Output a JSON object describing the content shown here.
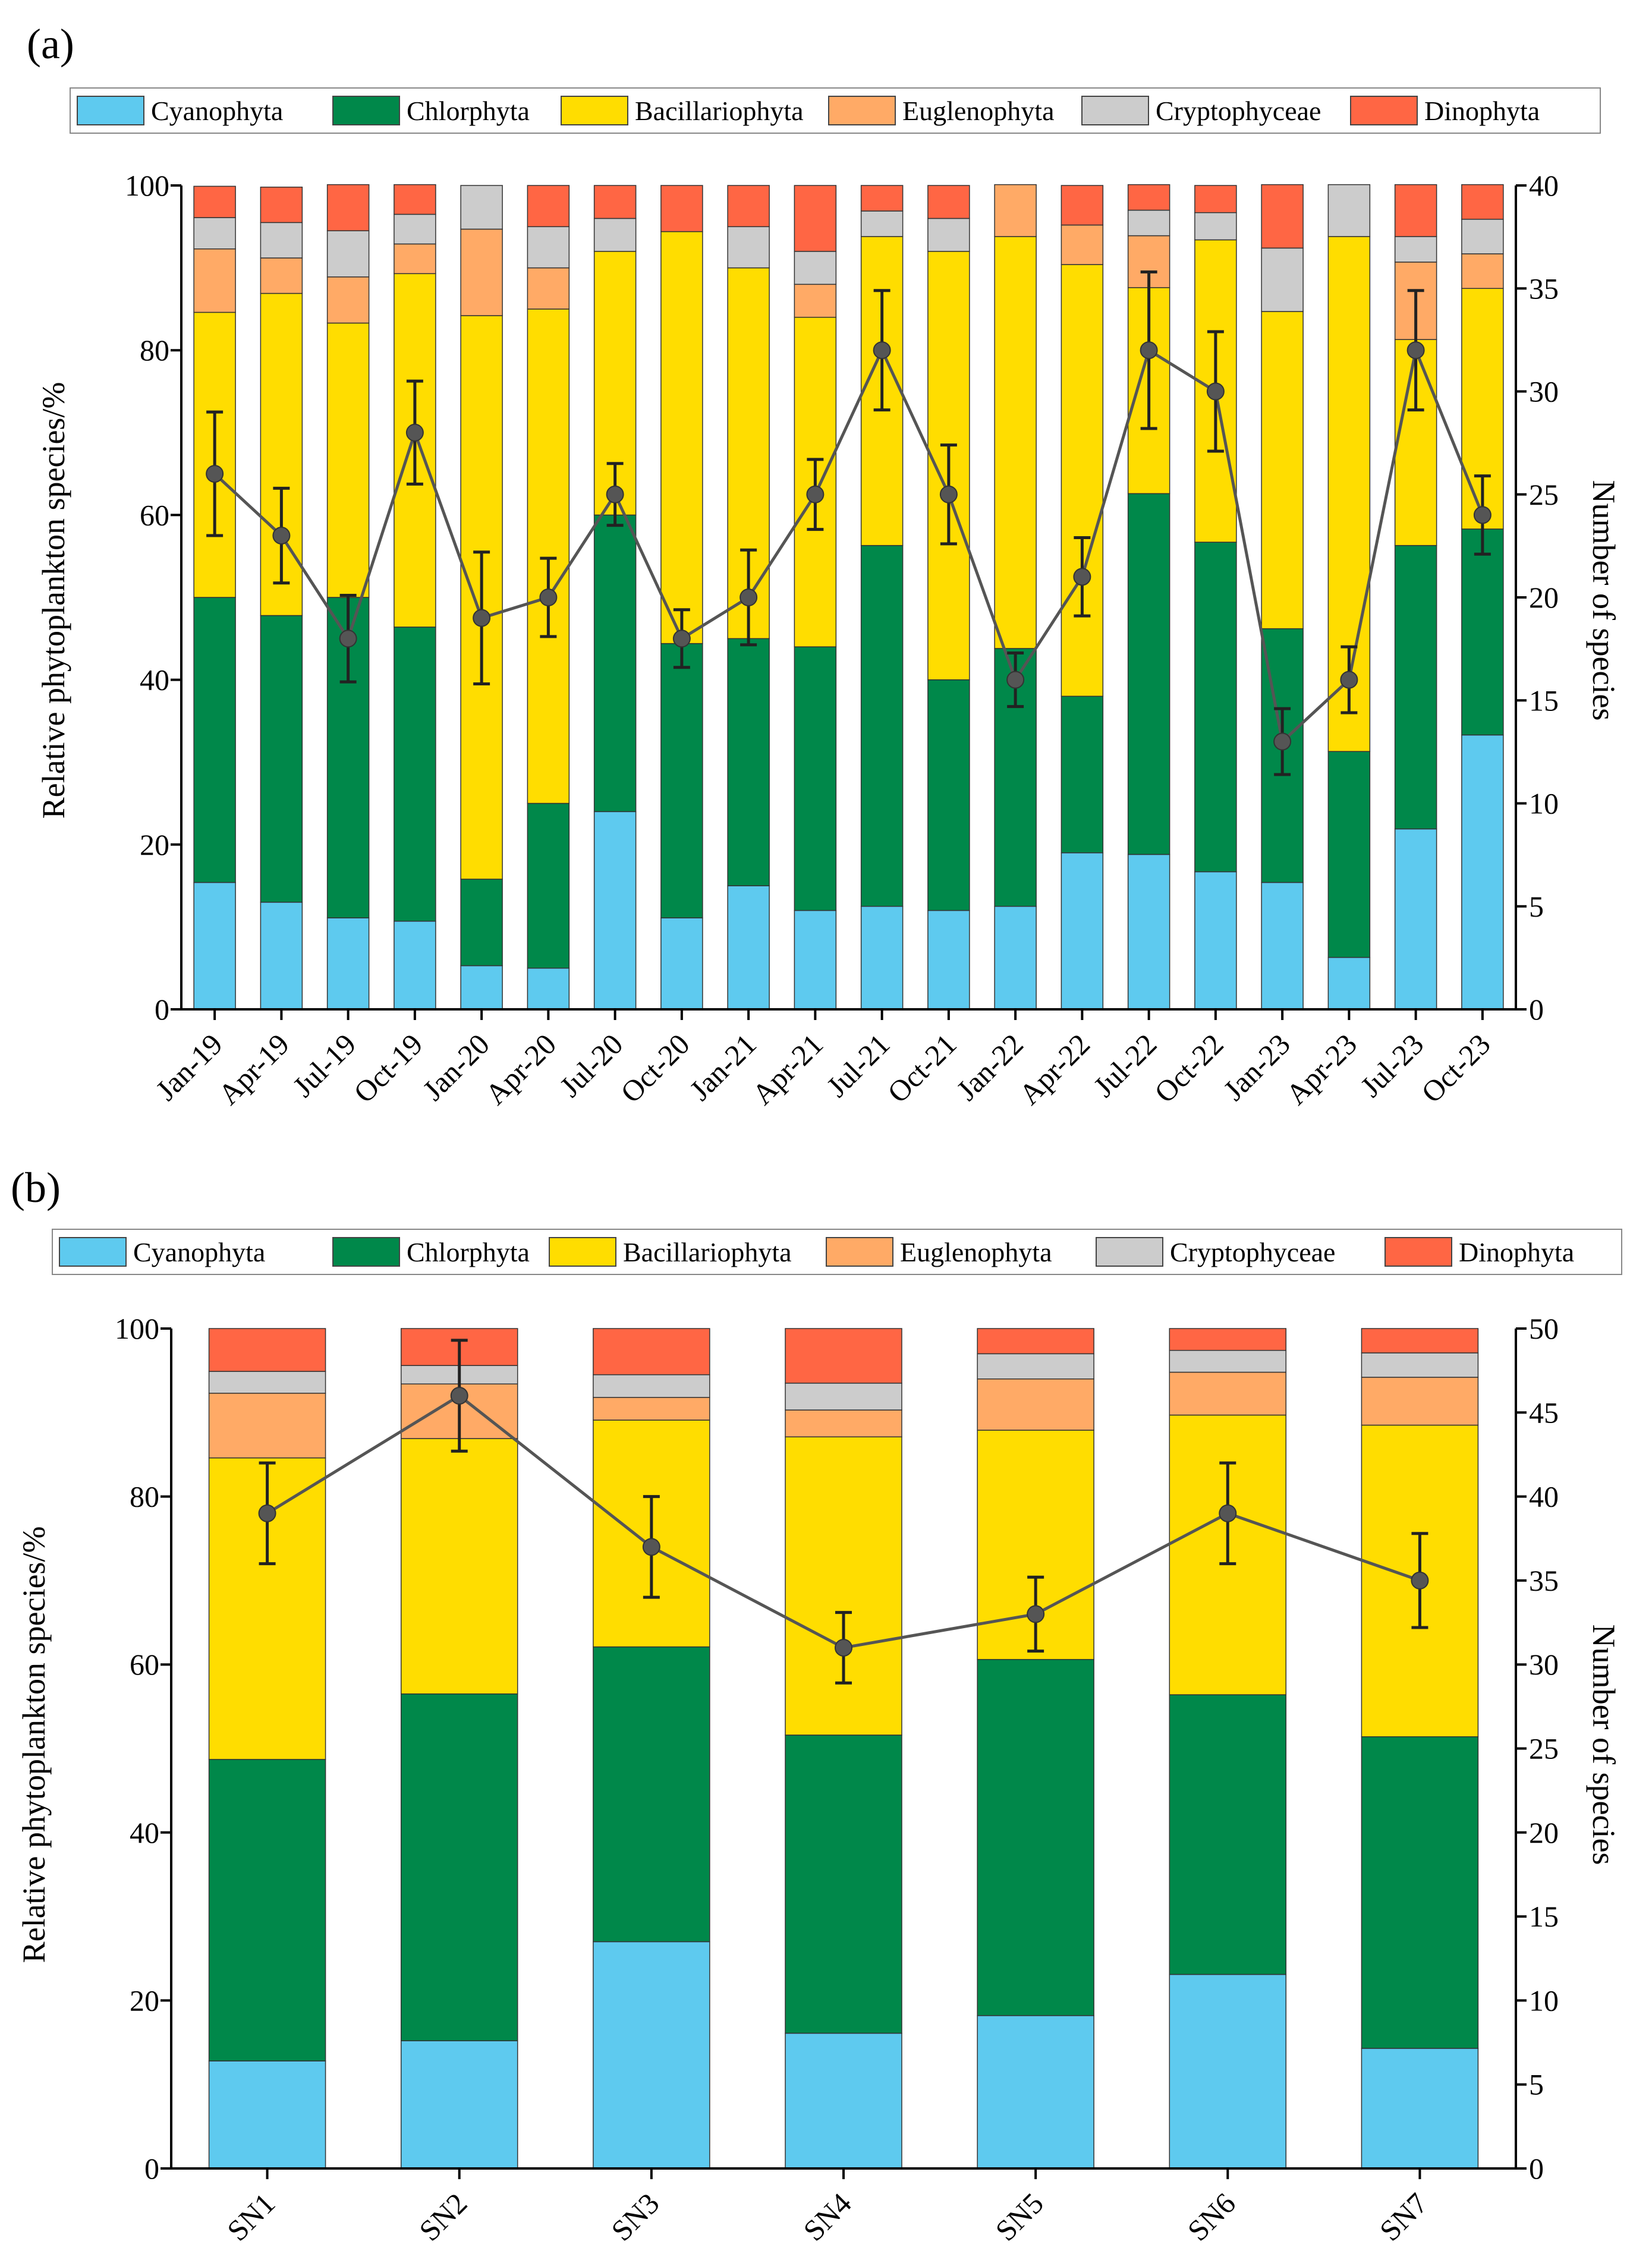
{
  "chart_data": [
    {
      "panel_label": "(a)",
      "type": "bar",
      "stacked": true,
      "legend": [
        "Cyanophyta",
        "Chlorphyta",
        "Bacillariophyta",
        "Euglenophyta",
        "Cryptophyceae",
        "Dinophyta"
      ],
      "legend_placement": "top",
      "colors": [
        "#5ECAEF",
        "#00884A",
        "#FFDD00",
        "#FFAA66",
        "#CCCCCC",
        "#FF6644"
      ],
      "categories": [
        "Jan-19",
        "Apr-19",
        "Jul-19",
        "Oct-19",
        "Jan-20",
        "Apr-20",
        "Jul-20",
        "Oct-20",
        "Jan-21",
        "Apr-21",
        "Jul-21",
        "Oct-21",
        "Jan-22",
        "Apr-22",
        "Jul-22",
        "Oct-22",
        "Jan-23",
        "Apr-23",
        "Jul-23",
        "Oct-23"
      ],
      "series": [
        {
          "name": "Cyanophyta",
          "values": [
            15.4,
            13.0,
            11.1,
            10.7,
            5.3,
            5.0,
            24.0,
            11.1,
            15.0,
            12.0,
            12.5,
            12.0,
            12.5,
            19.0,
            18.8,
            16.7,
            15.4,
            6.3,
            21.9,
            33.3
          ]
        },
        {
          "name": "Chlorphyta",
          "values": [
            34.6,
            34.8,
            38.9,
            35.7,
            10.5,
            20.0,
            36.0,
            33.3,
            30.0,
            32.0,
            43.8,
            28.0,
            31.3,
            19.0,
            43.8,
            40.0,
            30.8,
            25.0,
            34.4,
            25.0
          ]
        },
        {
          "name": "Bacillariophyta",
          "values": [
            34.6,
            39.1,
            33.3,
            42.9,
            68.4,
            60.0,
            32.0,
            50.0,
            45.0,
            40.0,
            37.5,
            52.0,
            50.0,
            52.4,
            25.0,
            36.7,
            38.5,
            62.5,
            25.0,
            29.2
          ]
        },
        {
          "name": "Euglenophyta",
          "values": [
            7.7,
            4.3,
            5.6,
            3.6,
            10.5,
            5.0,
            0,
            0,
            0,
            4.0,
            0,
            0,
            6.3,
            4.8,
            6.3,
            0,
            0,
            0,
            9.4,
            4.2
          ]
        },
        {
          "name": "Cryptophyceae",
          "values": [
            3.8,
            4.3,
            5.6,
            3.6,
            5.3,
            5.0,
            4.0,
            0,
            5.0,
            4.0,
            3.1,
            4.0,
            0,
            0,
            3.1,
            3.3,
            7.7,
            6.3,
            3.1,
            4.2
          ]
        },
        {
          "name": "Dinophyta",
          "values": [
            3.8,
            4.3,
            5.6,
            3.6,
            0,
            5.0,
            4.0,
            5.6,
            5.0,
            8.0,
            3.1,
            4.0,
            0,
            4.8,
            3.1,
            3.3,
            7.7,
            0,
            6.3,
            4.2
          ]
        }
      ],
      "species_count": {
        "name": "Number of species",
        "values": [
          26,
          23,
          18,
          28,
          19,
          20,
          25,
          18,
          20,
          25,
          32,
          25,
          16,
          21,
          32,
          30,
          13,
          16,
          32,
          24
        ],
        "error": [
          3.0,
          2.3,
          2.1,
          2.5,
          3.2,
          1.9,
          1.5,
          1.4,
          2.3,
          1.7,
          2.9,
          2.4,
          1.3,
          1.9,
          3.8,
          2.9,
          1.6,
          1.6,
          2.9,
          1.9
        ]
      },
      "ylabel": "Relative phytoplankton species/%",
      "ylim": [
        0,
        100
      ],
      "yticks": [
        "0",
        "20",
        "40",
        "60",
        "80",
        "100"
      ],
      "y2label": "Number of species",
      "y2lim": [
        0,
        40
      ],
      "y2ticks": [
        "0",
        "5",
        "10",
        "15",
        "20",
        "25",
        "30",
        "35",
        "40"
      ]
    },
    {
      "panel_label": "(b)",
      "type": "bar",
      "stacked": true,
      "legend": [
        "Cyanophyta",
        "Chlorphyta",
        "Bacillariophyta",
        "Euglenophyta",
        "Cryptophyceae",
        "Dinophyta"
      ],
      "legend_placement": "top",
      "colors": [
        "#5ECAEF",
        "#00884A",
        "#FFDD00",
        "#FFAA66",
        "#CCCCCC",
        "#FF6644"
      ],
      "categories": [
        "SN1",
        "SN2",
        "SN3",
        "SN4",
        "SN5",
        "SN6",
        "SN7"
      ],
      "series": [
        {
          "name": "Cyanophyta",
          "values": [
            12.8,
            15.2,
            27.0,
            16.1,
            18.2,
            23.1,
            14.3
          ]
        },
        {
          "name": "Chlorphyta",
          "values": [
            35.9,
            41.3,
            35.1,
            35.5,
            42.4,
            33.3,
            37.1
          ]
        },
        {
          "name": "Bacillariophyta",
          "values": [
            35.9,
            30.4,
            27.0,
            35.5,
            27.3,
            33.3,
            37.1
          ]
        },
        {
          "name": "Euglenophyta",
          "values": [
            7.7,
            6.5,
            2.7,
            3.2,
            6.1,
            5.1,
            5.7
          ]
        },
        {
          "name": "Cryptophyceae",
          "values": [
            2.6,
            2.2,
            2.7,
            3.2,
            3.0,
            2.6,
            2.9
          ]
        },
        {
          "name": "Dinophyta",
          "values": [
            5.1,
            4.4,
            5.5,
            6.5,
            3.0,
            2.6,
            2.9
          ]
        }
      ],
      "species_count": {
        "name": "Number of species",
        "values": [
          39,
          46,
          37,
          31,
          33,
          39,
          35
        ],
        "error": [
          3.0,
          3.3,
          3.0,
          2.1,
          2.2,
          3.0,
          2.8
        ]
      },
      "ylabel": "Relative phytoplankton species/%",
      "ylim": [
        0,
        100
      ],
      "yticks": [
        "0",
        "20",
        "40",
        "60",
        "80",
        "100"
      ],
      "y2label": "Number of species",
      "y2lim": [
        0,
        50
      ],
      "y2ticks": [
        "0",
        "5",
        "10",
        "15",
        "20",
        "25",
        "30",
        "35",
        "40",
        "45",
        "50"
      ]
    }
  ]
}
